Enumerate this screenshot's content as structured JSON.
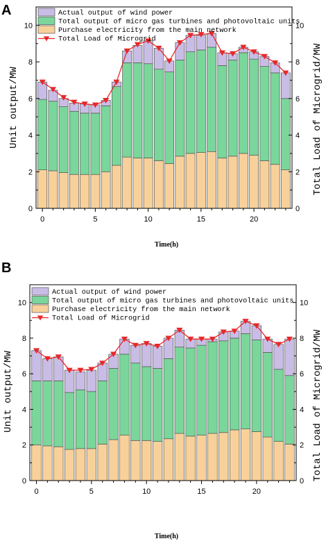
{
  "legend": {
    "wind": "Actual output of wind power",
    "gas_pv": "Total output of micro gas turbines and photovoltaic units",
    "grid": "Purchase electricity from the main network",
    "load": "Total  Load of Microgrid"
  },
  "colors": {
    "wind": "#c9bde6",
    "gas_pv": "#7ad69a",
    "grid": "#f8d19a",
    "load": "#e8282a",
    "bar_edge": "#555555"
  },
  "chart_data": [
    {
      "panel": "A",
      "type": "bar",
      "stacked": true,
      "x": [
        0,
        1,
        2,
        3,
        4,
        5,
        6,
        7,
        8,
        9,
        10,
        11,
        12,
        13,
        14,
        15,
        16,
        17,
        18,
        19,
        20,
        21,
        22,
        23
      ],
      "xlabel": "Time(h)",
      "ylabel": "Unit output/MW",
      "y2label": "Total  Load of Microgrid/MW",
      "xticks": [
        0,
        5,
        10,
        15,
        20
      ],
      "yticks": [
        0,
        2,
        4,
        6,
        8,
        10
      ],
      "xlim": [
        -0.6,
        23.6
      ],
      "ylim": [
        0,
        11
      ],
      "series": [
        {
          "name": "Purchase electricity from the main network",
          "key": "grid",
          "values": [
            2.1,
            2.05,
            1.95,
            1.85,
            1.85,
            1.85,
            2.0,
            2.35,
            2.8,
            2.75,
            2.75,
            2.6,
            2.45,
            2.85,
            3.0,
            3.05,
            3.1,
            2.75,
            2.85,
            3.0,
            2.9,
            2.6,
            2.4,
            2.1
          ]
        },
        {
          "name": "Total output of micro gas turbines and photovoltaic units",
          "key": "gas_pv",
          "values": [
            3.85,
            3.8,
            3.6,
            3.45,
            3.35,
            3.35,
            3.6,
            4.3,
            5.15,
            5.2,
            5.15,
            5.0,
            5.0,
            5.25,
            5.55,
            5.6,
            5.7,
            5.05,
            5.25,
            5.5,
            5.25,
            5.15,
            5.0,
            3.9
          ]
        },
        {
          "name": "Actual output of wind power",
          "key": "wind",
          "values": [
            0.95,
            0.6,
            0.45,
            0.45,
            0.5,
            0.45,
            0.3,
            0.25,
            0.65,
            0.95,
            1.25,
            1.15,
            0.6,
            0.95,
            0.9,
            0.8,
            0.75,
            0.7,
            0.35,
            0.3,
            0.4,
            0.55,
            0.55,
            1.4
          ]
        },
        {
          "name": "Total  Load of Microgrid",
          "key": "load",
          "type": "line",
          "values": [
            6.9,
            6.5,
            6.05,
            5.8,
            5.7,
            5.65,
            5.9,
            6.9,
            8.6,
            8.95,
            9.15,
            8.75,
            8.05,
            9.05,
            9.45,
            9.5,
            9.55,
            8.5,
            8.45,
            8.8,
            8.55,
            8.3,
            7.95,
            7.4
          ]
        }
      ]
    },
    {
      "panel": "B",
      "type": "bar",
      "stacked": true,
      "x": [
        0,
        1,
        2,
        3,
        4,
        5,
        6,
        7,
        8,
        9,
        10,
        11,
        12,
        13,
        14,
        15,
        16,
        17,
        18,
        19,
        20,
        21,
        22,
        23
      ],
      "xlabel": "Time(h)",
      "ylabel": "Unit output/MW",
      "y2label": "Total  Load of Microgrid/MW",
      "xticks": [
        0,
        5,
        10,
        15,
        20
      ],
      "yticks": [
        0,
        2,
        4,
        6,
        8,
        10
      ],
      "xlim": [
        -0.6,
        23.6
      ],
      "ylim": [
        0,
        11
      ],
      "series": [
        {
          "name": "Purchase electricity from the main network",
          "key": "grid",
          "values": [
            2.0,
            1.95,
            1.9,
            1.75,
            1.8,
            1.8,
            2.05,
            2.3,
            2.55,
            2.25,
            2.25,
            2.2,
            2.35,
            2.65,
            2.5,
            2.55,
            2.65,
            2.7,
            2.85,
            2.9,
            2.75,
            2.45,
            2.2,
            2.05
          ]
        },
        {
          "name": "Total output of micro gas turbines and photovoltaic units",
          "key": "gas_pv",
          "values": [
            3.6,
            3.65,
            3.7,
            3.2,
            3.3,
            3.2,
            3.55,
            4.0,
            4.55,
            4.35,
            4.15,
            4.1,
            4.5,
            4.85,
            4.95,
            5.05,
            5.15,
            5.15,
            5.15,
            5.35,
            5.15,
            4.75,
            4.05,
            3.85
          ]
        },
        {
          "name": "Actual output of wind power",
          "key": "wind",
          "values": [
            1.7,
            1.25,
            1.35,
            1.25,
            1.0,
            1.2,
            1.0,
            0.8,
            0.85,
            1.0,
            1.3,
            1.25,
            1.15,
            0.95,
            0.5,
            0.35,
            0.15,
            0.5,
            0.4,
            0.7,
            0.8,
            0.75,
            1.4,
            2.05
          ]
        },
        {
          "name": "Total  Load of Microgrid",
          "key": "load",
          "type": "line",
          "values": [
            7.3,
            6.85,
            6.95,
            6.2,
            6.2,
            6.25,
            6.6,
            7.1,
            7.95,
            7.6,
            7.7,
            7.55,
            8.0,
            8.45,
            7.95,
            7.95,
            7.95,
            8.35,
            8.4,
            8.95,
            8.7,
            7.95,
            7.65,
            7.95
          ]
        }
      ]
    }
  ]
}
